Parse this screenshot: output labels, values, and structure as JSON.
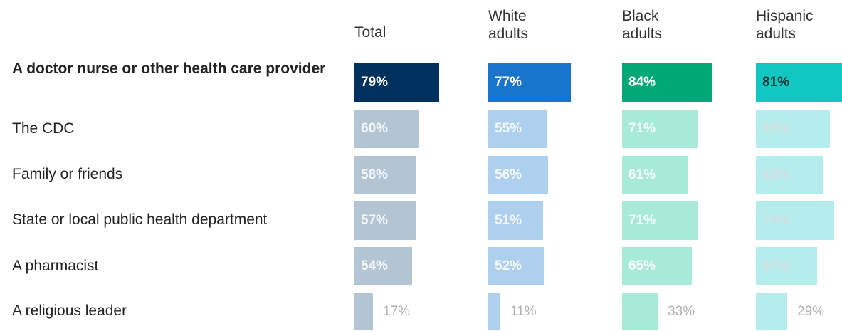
{
  "chart_data": {
    "type": "bar",
    "columns": [
      "Total",
      "White adults",
      "Black adults",
      "Hispanic adults"
    ],
    "categories": [
      "A doctor nurse or other health care provider",
      "The CDC",
      "Family or friends",
      "State or local public health department",
      "A pharmacist",
      "A religious leader"
    ],
    "series": [
      {
        "name": "Total",
        "values": [
          79,
          60,
          58,
          57,
          54,
          17
        ]
      },
      {
        "name": "White adults",
        "values": [
          77,
          55,
          56,
          51,
          52,
          11
        ]
      },
      {
        "name": "Black adults",
        "values": [
          84,
          71,
          61,
          71,
          65,
          33
        ]
      },
      {
        "name": "Hispanic adults",
        "values": [
          81,
          69,
          63,
          73,
          57,
          29
        ]
      }
    ],
    "value_suffix": "%",
    "highlight_category": "A doctor nurse or other health care provider",
    "colors": {
      "highlight": [
        "#00305e",
        "#1874cd",
        "#00a878",
        "#10c7c2"
      ],
      "highlight_text": [
        "#ffffff",
        "#ffffff",
        "#ffffff",
        "#1b3a3a"
      ],
      "muted": [
        "#b3c4d2",
        "#acd0ee",
        "#a8ead8",
        "#b5ecec"
      ],
      "muted_text": [
        "#f5f8fb",
        "#f5f8fb",
        "#f5fbf9",
        "#d2dddd"
      ],
      "outside_text": "#b0b0b0"
    }
  }
}
